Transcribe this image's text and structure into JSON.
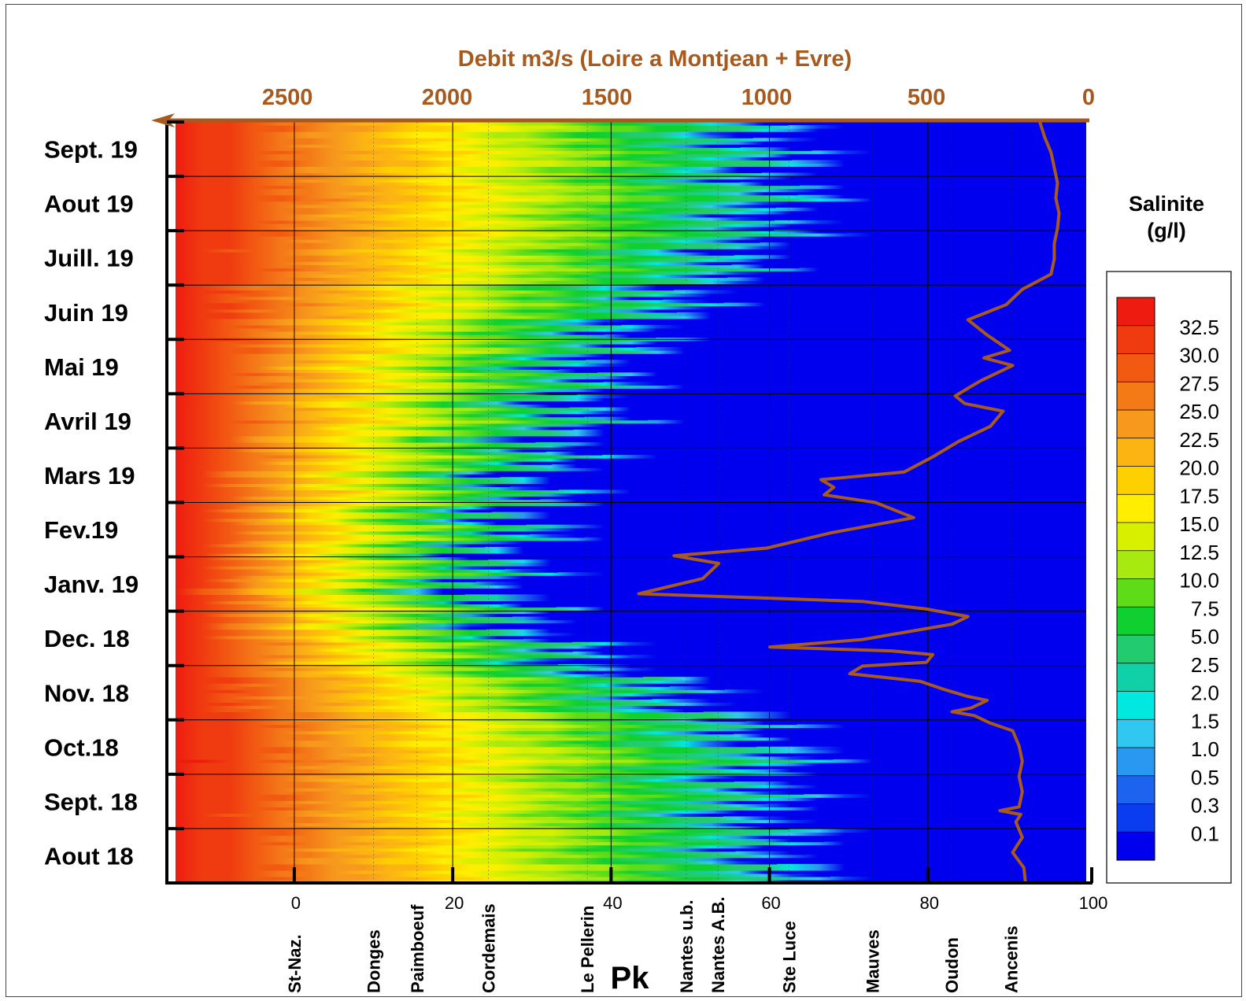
{
  "chart_data": {
    "type": "heatmap",
    "title": "",
    "top_axis": {
      "label": "Debit m3/s (Loire a Montjean + Evre)",
      "ticks": [
        2500,
        2000,
        1500,
        1000,
        500,
        0
      ],
      "range": [
        2850,
        0
      ],
      "direction": "decreasing-right"
    },
    "x": {
      "label": "Pk",
      "ticks": [
        0,
        20,
        40,
        60,
        80,
        100
      ],
      "range": [
        -15,
        100
      ]
    },
    "y": {
      "label": "",
      "months": [
        "Aout 18",
        "Sept. 18",
        "Oct.18",
        "Nov. 18",
        "Dec. 18",
        "Janv. 19",
        "Fev.19",
        "Mars 19",
        "Avril 19",
        "Mai 19",
        "Juin 19",
        "Juill. 19",
        "Aout 19",
        "Sept. 19"
      ]
    },
    "stations": [
      {
        "name": "St-Naz.",
        "pk": 0
      },
      {
        "name": "Donges",
        "pk": 10
      },
      {
        "name": "Paimboeuf",
        "pk": 15.5
      },
      {
        "name": "Cordemais",
        "pk": 24.5
      },
      {
        "name": "Le Pellerin",
        "pk": 37
      },
      {
        "name": "Nantes u.b.",
        "pk": 49.5
      },
      {
        "name": "Nantes A.B.",
        "pk": 53.5
      },
      {
        "name": "Ste Luce",
        "pk": 62.5
      },
      {
        "name": "Mauves",
        "pk": 73
      },
      {
        "name": "Oudon",
        "pk": 83
      },
      {
        "name": "Ancenis",
        "pk": 90.5
      }
    ],
    "salinity_front_pk_by_month": [
      {
        "month": "Aout 18",
        "pk_0_1": 62
      },
      {
        "month": "Sept. 18",
        "pk_0_1": 60
      },
      {
        "month": "Oct.18",
        "pk_0_1": 63
      },
      {
        "month": "Nov. 18",
        "pk_0_1": 49
      },
      {
        "month": "Dec. 18",
        "pk_0_1": 31
      },
      {
        "month": "Janv. 19",
        "pk_0_1": 25
      },
      {
        "month": "Fev.19",
        "pk_0_1": 29
      },
      {
        "month": "Mars 19",
        "pk_0_1": 31
      },
      {
        "month": "Avril 19",
        "pk_0_1": 37
      },
      {
        "month": "Mai 19",
        "pk_0_1": 39
      },
      {
        "month": "Juin 19",
        "pk_0_1": 47
      },
      {
        "month": "Juill. 19",
        "pk_0_1": 58
      },
      {
        "month": "Aout 19",
        "pk_0_1": 63
      },
      {
        "month": "Sept. 19",
        "pk_0_1": 61
      }
    ],
    "discharge_series": {
      "name": "Debit m3/s (Loire a Montjean + Evre)",
      "color": "#a85a1e",
      "points": [
        {
          "t": 0.0,
          "q": 190
        },
        {
          "t": 0.02,
          "q": 195
        },
        {
          "t": 0.04,
          "q": 230
        },
        {
          "t": 0.06,
          "q": 200
        },
        {
          "t": 0.08,
          "q": 220
        },
        {
          "t": 0.09,
          "q": 205
        },
        {
          "t": 0.095,
          "q": 270
        },
        {
          "t": 0.1,
          "q": 210
        },
        {
          "t": 0.12,
          "q": 200
        },
        {
          "t": 0.14,
          "q": 210
        },
        {
          "t": 0.16,
          "q": 200
        },
        {
          "t": 0.18,
          "q": 210
        },
        {
          "t": 0.2,
          "q": 230
        },
        {
          "t": 0.21,
          "q": 300
        },
        {
          "t": 0.22,
          "q": 350
        },
        {
          "t": 0.225,
          "q": 420
        },
        {
          "t": 0.23,
          "q": 360
        },
        {
          "t": 0.24,
          "q": 310
        },
        {
          "t": 0.245,
          "q": 370
        },
        {
          "t": 0.255,
          "q": 450
        },
        {
          "t": 0.265,
          "q": 520
        },
        {
          "t": 0.275,
          "q": 740
        },
        {
          "t": 0.285,
          "q": 700
        },
        {
          "t": 0.29,
          "q": 500
        },
        {
          "t": 0.3,
          "q": 480
        },
        {
          "t": 0.305,
          "q": 610
        },
        {
          "t": 0.31,
          "q": 990
        },
        {
          "t": 0.32,
          "q": 700
        },
        {
          "t": 0.34,
          "q": 420
        },
        {
          "t": 0.35,
          "q": 370
        },
        {
          "t": 0.36,
          "q": 500
        },
        {
          "t": 0.37,
          "q": 700
        },
        {
          "t": 0.38,
          "q": 1400
        },
        {
          "t": 0.4,
          "q": 1200
        },
        {
          "t": 0.42,
          "q": 1150
        },
        {
          "t": 0.43,
          "q": 1290
        },
        {
          "t": 0.44,
          "q": 1000
        },
        {
          "t": 0.46,
          "q": 800
        },
        {
          "t": 0.48,
          "q": 540
        },
        {
          "t": 0.5,
          "q": 660
        },
        {
          "t": 0.51,
          "q": 820
        },
        {
          "t": 0.52,
          "q": 790
        },
        {
          "t": 0.53,
          "q": 830
        },
        {
          "t": 0.54,
          "q": 570
        },
        {
          "t": 0.56,
          "q": 480
        },
        {
          "t": 0.58,
          "q": 400
        },
        {
          "t": 0.6,
          "q": 300
        },
        {
          "t": 0.62,
          "q": 260
        },
        {
          "t": 0.63,
          "q": 380
        },
        {
          "t": 0.64,
          "q": 410
        },
        {
          "t": 0.65,
          "q": 370
        },
        {
          "t": 0.66,
          "q": 330
        },
        {
          "t": 0.68,
          "q": 230
        },
        {
          "t": 0.69,
          "q": 320
        },
        {
          "t": 0.7,
          "q": 240
        },
        {
          "t": 0.72,
          "q": 310
        },
        {
          "t": 0.74,
          "q": 370
        },
        {
          "t": 0.76,
          "q": 250
        },
        {
          "t": 0.78,
          "q": 200
        },
        {
          "t": 0.8,
          "q": 110
        },
        {
          "t": 0.82,
          "q": 100
        },
        {
          "t": 0.84,
          "q": 100
        },
        {
          "t": 0.86,
          "q": 90
        },
        {
          "t": 0.88,
          "q": 85
        },
        {
          "t": 0.9,
          "q": 95
        },
        {
          "t": 0.92,
          "q": 90
        },
        {
          "t": 0.94,
          "q": 100
        },
        {
          "t": 0.96,
          "q": 110
        },
        {
          "t": 0.98,
          "q": 130
        },
        {
          "t": 1.0,
          "q": 145
        }
      ]
    },
    "colorbar": {
      "title_line1": "Salinite",
      "title_line2": "(g/l)",
      "levels": [
        "32.5",
        "30.0",
        "27.5",
        "25.0",
        "22.5",
        "20.0",
        "17.5",
        "15.0",
        "12.5",
        "10.0",
        "7.5",
        "5.0",
        "2.5",
        "2.0",
        "1.5",
        "1.0",
        "0.5",
        "0.3",
        "0.1"
      ],
      "colors": [
        "#ee1c10",
        "#f03a10",
        "#f25a12",
        "#f47a18",
        "#f6991c",
        "#fbb412",
        "#ffd000",
        "#ffee00",
        "#d8f000",
        "#a8ea10",
        "#5edc18",
        "#10d030",
        "#22cc6e",
        "#10d0a8",
        "#00e8e0",
        "#30c8f0",
        "#2898f0",
        "#1c64f0",
        "#0a3cf0",
        "#0000ee"
      ]
    },
    "grid": true
  }
}
